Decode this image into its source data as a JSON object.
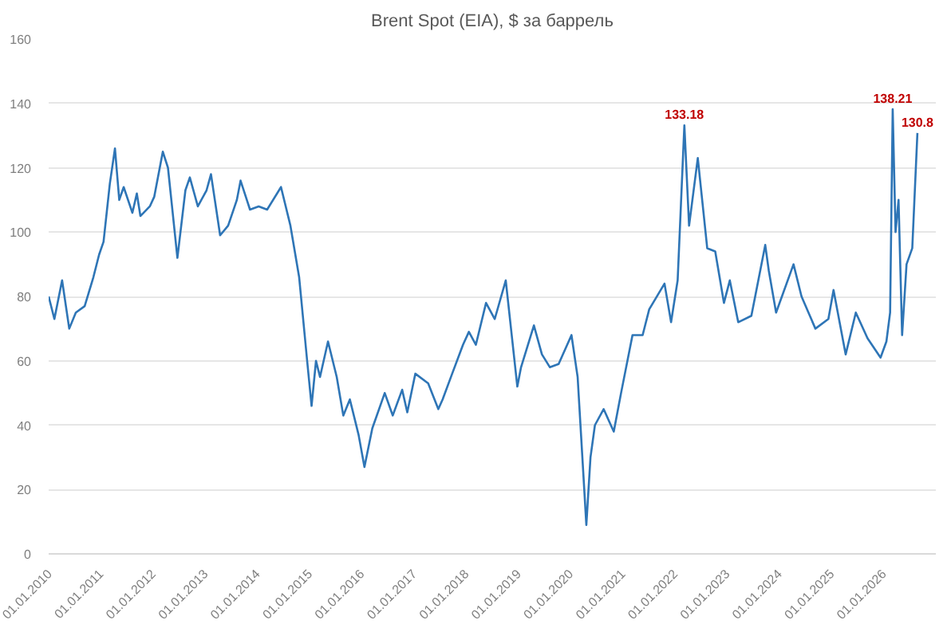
{
  "chart_data": {
    "type": "line",
    "title": "Brent Spot (EIA), $ за баррель",
    "x": [
      "2010-01-01",
      "2010-02-10",
      "2010-04-05",
      "2010-05-25",
      "2010-07-10",
      "2010-09-10",
      "2010-11-10",
      "2010-12-20",
      "2011-01-20",
      "2011-03-05",
      "2011-04-10",
      "2011-05-10",
      "2011-06-10",
      "2011-08-10",
      "2011-09-10",
      "2011-10-05",
      "2011-12-10",
      "2012-01-10",
      "2012-03-10",
      "2012-04-15",
      "2012-06-20",
      "2012-08-15",
      "2012-09-15",
      "2012-11-10",
      "2013-01-10",
      "2013-02-10",
      "2013-04-15",
      "2013-06-10",
      "2013-08-10",
      "2013-09-05",
      "2013-11-10",
      "2014-01-10",
      "2014-03-10",
      "2014-06-15",
      "2014-08-20",
      "2014-10-20",
      "2014-12-15",
      "2015-01-15",
      "2015-02-15",
      "2015-03-15",
      "2015-05-10",
      "2015-07-10",
      "2015-08-25",
      "2015-10-10",
      "2015-12-10",
      "2016-01-20",
      "2016-03-15",
      "2016-06-10",
      "2016-08-05",
      "2016-10-10",
      "2016-11-15",
      "2017-01-10",
      "2017-04-10",
      "2017-06-20",
      "2017-07-20",
      "2017-09-25",
      "2017-12-10",
      "2018-01-20",
      "2018-03-10",
      "2018-05-20",
      "2018-07-20",
      "2018-10-05",
      "2018-12-25",
      "2019-01-20",
      "2019-04-20",
      "2019-06-15",
      "2019-08-10",
      "2019-10-10",
      "2020-01-08",
      "2020-02-20",
      "2020-04-21",
      "2020-05-20",
      "2020-06-20",
      "2020-08-20",
      "2020-10-30",
      "2020-12-20",
      "2021-03-10",
      "2021-05-20",
      "2021-07-05",
      "2021-10-20",
      "2021-12-05",
      "2022-01-20",
      "2022-03-08",
      "2022-04-10",
      "2022-06-10",
      "2022-08-15",
      "2022-10-10",
      "2022-12-10",
      "2023-01-20",
      "2023-03-20",
      "2023-06-20",
      "2023-09-25",
      "2023-10-20",
      "2023-12-10",
      "2024-04-10",
      "2024-06-05",
      "2024-09-10",
      "2024-12-10",
      "2025-01-15",
      "2025-04-10",
      "2025-06-20",
      "2025-09-10",
      "2025-12-10",
      "2026-01-20",
      "2026-02-15",
      "2026-03-05",
      "2026-03-25",
      "2026-04-15",
      "2026-05-10",
      "2026-06-10",
      "2026-07-20",
      "2026-08-25"
    ],
    "series": [
      {
        "color": "#2e75b6",
        "values": [
          80,
          73,
          85,
          70,
          75,
          77,
          86,
          93,
          97,
          115,
          126,
          110,
          114,
          106,
          112,
          105,
          108,
          111,
          125,
          120,
          92,
          113,
          117,
          108,
          113,
          118,
          99,
          102,
          110,
          116,
          107,
          108,
          107,
          114,
          102,
          86,
          60,
          46,
          60,
          55,
          66,
          55,
          43,
          48,
          37,
          27,
          39,
          50,
          43,
          51,
          44,
          56,
          53,
          45,
          48,
          56,
          65,
          69,
          65,
          78,
          73,
          85,
          52,
          58,
          71,
          62,
          58,
          59,
          68,
          55,
          9,
          30,
          40,
          45,
          38,
          50,
          68,
          68,
          76,
          84,
          72,
          85,
          133.18,
          102,
          123,
          95,
          94,
          78,
          85,
          72,
          74,
          96,
          88,
          75,
          90,
          80,
          70,
          73,
          82,
          62,
          75,
          67,
          61,
          66,
          75,
          138.21,
          100,
          110,
          68,
          90,
          95,
          130.8
        ]
      }
    ],
    "annotations": [
      {
        "text": "133.18",
        "x": "2022-03-08",
        "y": 133.18
      },
      {
        "text": "138.21",
        "x": "2026-03-05",
        "y": 138.21
      },
      {
        "text": "130.8",
        "x": "2026-08-25",
        "y": 130.8
      }
    ],
    "xlim": [
      "2010-01-01",
      "2027-01-01"
    ],
    "xticks": [
      {
        "value": "2010-01-01",
        "label": "01.01.2010"
      },
      {
        "value": "2011-01-01",
        "label": "01.01.2011"
      },
      {
        "value": "2012-01-01",
        "label": "01.01.2012"
      },
      {
        "value": "2013-01-01",
        "label": "01.01.2013"
      },
      {
        "value": "2014-01-01",
        "label": "01.01.2014"
      },
      {
        "value": "2015-01-01",
        "label": "01.01.2015"
      },
      {
        "value": "2016-01-01",
        "label": "01.01.2016"
      },
      {
        "value": "2017-01-01",
        "label": "01.01.2017"
      },
      {
        "value": "2018-01-01",
        "label": "01.01.2018"
      },
      {
        "value": "2019-01-01",
        "label": "01.01.2019"
      },
      {
        "value": "2020-01-01",
        "label": "01.01.2020"
      },
      {
        "value": "2021-01-01",
        "label": "01.01.2021"
      },
      {
        "value": "2022-01-01",
        "label": "01.01.2022"
      },
      {
        "value": "2023-01-01",
        "label": "01.01.2023"
      },
      {
        "value": "2024-01-01",
        "label": "01.01.2024"
      },
      {
        "value": "2025-01-01",
        "label": "01.01.2025"
      },
      {
        "value": "2026-01-01",
        "label": "01.01.2026"
      }
    ],
    "ylim": [
      0,
      160
    ],
    "yticks": [
      0,
      20,
      40,
      60,
      80,
      100,
      120,
      140,
      160
    ],
    "grid": "y",
    "marker": "none",
    "line_style": "solid"
  }
}
